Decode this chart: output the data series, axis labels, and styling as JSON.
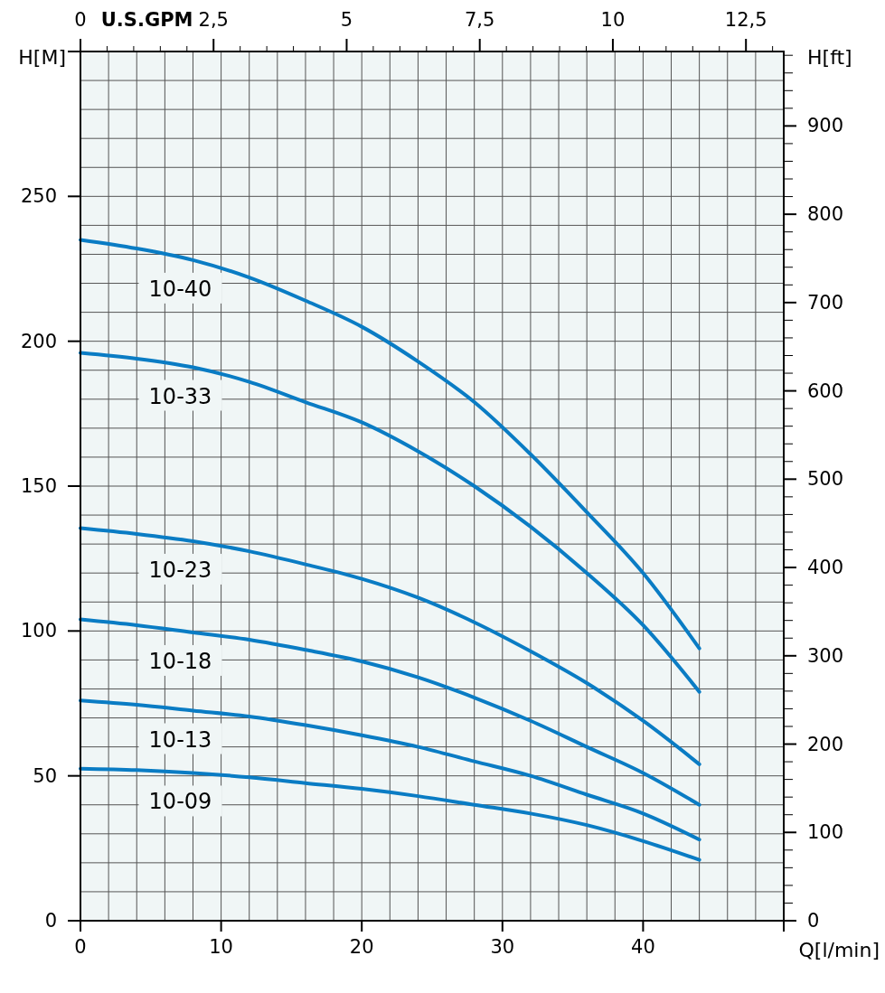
{
  "chart_data": {
    "type": "line",
    "xlabel": "Q[l/min]",
    "ylabel": "H[M]",
    "y2label": "H[ft]",
    "x2label": "U.S.GPM",
    "x": [
      0,
      4,
      8,
      12,
      16,
      20,
      24,
      28,
      32,
      36,
      40,
      44
    ],
    "xlim": [
      0,
      50
    ],
    "xticks": [
      0,
      {
        "value": 2,
        "label": null
      },
      {
        "value": 4,
        "label": null
      },
      {
        "value": 6,
        "label": null
      },
      {
        "value": 8,
        "label": null
      },
      10,
      {
        "value": 12,
        "label": null
      },
      {
        "value": 14,
        "label": null
      },
      {
        "value": 16,
        "label": null
      },
      {
        "value": 18,
        "label": null
      },
      20,
      {
        "value": 22,
        "label": null
      },
      {
        "value": 24,
        "label": null
      },
      {
        "value": 26,
        "label": null
      },
      {
        "value": 28,
        "label": null
      },
      30,
      {
        "value": 32,
        "label": null
      },
      {
        "value": 34,
        "label": null
      },
      {
        "value": 36,
        "label": null
      },
      {
        "value": 38,
        "label": null
      },
      40,
      {
        "value": 42,
        "label": null
      },
      {
        "value": 44,
        "label": null
      },
      {
        "value": 46,
        "label": null
      },
      {
        "value": 48,
        "label": null
      },
      {
        "value": 50,
        "label": null
      }
    ],
    "ylim": [
      0,
      300
    ],
    "yticks": [
      0,
      {
        "value": 10,
        "label": null
      },
      {
        "value": 20,
        "label": null
      },
      {
        "value": 30,
        "label": null
      },
      {
        "value": 40,
        "label": null
      },
      50,
      {
        "value": 60,
        "label": null
      },
      {
        "value": 70,
        "label": null
      },
      {
        "value": 80,
        "label": null
      },
      {
        "value": 90,
        "label": null
      },
      100,
      {
        "value": 110,
        "label": null
      },
      {
        "value": 120,
        "label": null
      },
      {
        "value": 130,
        "label": null
      },
      {
        "value": 140,
        "label": null
      },
      150,
      {
        "value": 160,
        "label": null
      },
      {
        "value": 170,
        "label": null
      },
      {
        "value": 180,
        "label": null
      },
      {
        "value": 190,
        "label": null
      },
      200,
      {
        "value": 210,
        "label": null
      },
      {
        "value": 220,
        "label": null
      },
      {
        "value": 230,
        "label": null
      },
      {
        "value": 240,
        "label": null
      },
      250,
      {
        "value": 260,
        "label": null
      },
      {
        "value": 270,
        "label": null
      },
      {
        "value": 280,
        "label": null
      },
      {
        "value": 290,
        "label": null
      },
      {
        "value": 300,
        "label": null
      }
    ],
    "x2lim": [
      0,
      13.21
    ],
    "x2ticks": [
      0,
      {
        "value": 0.5,
        "label": null
      },
      {
        "value": 1,
        "label": null
      },
      {
        "value": 1.5,
        "label": null
      },
      {
        "value": 2,
        "label": null
      },
      {
        "value": 2.5,
        "label": "2,5"
      },
      {
        "value": 3,
        "label": null
      },
      {
        "value": 3.5,
        "label": null
      },
      {
        "value": 4,
        "label": null
      },
      {
        "value": 4.5,
        "label": null
      },
      5,
      {
        "value": 5.5,
        "label": null
      },
      {
        "value": 6,
        "label": null
      },
      {
        "value": 6.5,
        "label": null
      },
      {
        "value": 7,
        "label": null
      },
      {
        "value": 7.5,
        "label": "7,5"
      },
      {
        "value": 8,
        "label": null
      },
      {
        "value": 8.5,
        "label": null
      },
      {
        "value": 9,
        "label": null
      },
      {
        "value": 9.5,
        "label": null
      },
      10,
      {
        "value": 10.5,
        "label": null
      },
      {
        "value": 11,
        "label": null
      },
      {
        "value": 11.5,
        "label": null
      },
      {
        "value": 12,
        "label": null
      },
      {
        "value": 12.5,
        "label": "12,5"
      },
      {
        "value": 13,
        "label": null
      }
    ],
    "y2lim": [
      0,
      984.3
    ],
    "y2ticks": [
      0,
      {
        "value": 20,
        "label": null
      },
      {
        "value": 40,
        "label": null
      },
      {
        "value": 60,
        "label": null
      },
      {
        "value": 80,
        "label": null
      },
      100,
      {
        "value": 120,
        "label": null
      },
      {
        "value": 140,
        "label": null
      },
      {
        "value": 160,
        "label": null
      },
      {
        "value": 180,
        "label": null
      },
      200,
      {
        "value": 220,
        "label": null
      },
      {
        "value": 240,
        "label": null
      },
      {
        "value": 260,
        "label": null
      },
      {
        "value": 280,
        "label": null
      },
      300,
      {
        "value": 320,
        "label": null
      },
      {
        "value": 340,
        "label": null
      },
      {
        "value": 360,
        "label": null
      },
      {
        "value": 380,
        "label": null
      },
      400,
      {
        "value": 420,
        "label": null
      },
      {
        "value": 440,
        "label": null
      },
      {
        "value": 460,
        "label": null
      },
      {
        "value": 480,
        "label": null
      },
      500,
      {
        "value": 520,
        "label": null
      },
      {
        "value": 540,
        "label": null
      },
      {
        "value": 560,
        "label": null
      },
      {
        "value": 580,
        "label": null
      },
      600,
      {
        "value": 620,
        "label": null
      },
      {
        "value": 640,
        "label": null
      },
      {
        "value": 660,
        "label": null
      },
      {
        "value": 680,
        "label": null
      },
      700,
      {
        "value": 720,
        "label": null
      },
      {
        "value": 740,
        "label": null
      },
      {
        "value": 760,
        "label": null
      },
      {
        "value": 780,
        "label": null
      },
      800,
      {
        "value": 820,
        "label": null
      },
      {
        "value": 840,
        "label": null
      },
      {
        "value": 860,
        "label": null
      },
      {
        "value": 880,
        "label": null
      },
      900,
      {
        "value": 920,
        "label": null
      },
      {
        "value": 940,
        "label": null
      },
      {
        "value": 960,
        "label": null
      },
      {
        "value": 980,
        "label": null
      }
    ],
    "grid": true,
    "marker": "none",
    "line_style": "solid",
    "series": [
      {
        "name": "10-40",
        "color": "#0a7cc4",
        "values": [
          235,
          232,
          228,
          222,
          214,
          205,
          193,
          179,
          161,
          141,
          120,
          94
        ]
      },
      {
        "name": "10-33",
        "color": "#0a7cc4",
        "values": [
          196,
          194,
          191,
          186,
          179,
          172,
          162,
          150,
          136,
          120,
          102,
          79
        ]
      },
      {
        "name": "10-23",
        "color": "#0a7cc4",
        "values": [
          135.5,
          133.5,
          131,
          127.5,
          123,
          118,
          111.5,
          103,
          93,
          82,
          69,
          54
        ]
      },
      {
        "name": "10-18",
        "color": "#0a7cc4",
        "values": [
          104,
          102,
          99.5,
          97,
          93.5,
          89.5,
          84,
          77,
          69,
          60,
          51,
          40
        ]
      },
      {
        "name": "10-13",
        "color": "#0a7cc4",
        "values": [
          76,
          74.5,
          72.5,
          70.5,
          67.5,
          64,
          60,
          55,
          50,
          43.5,
          37,
          28
        ]
      },
      {
        "name": "10-09",
        "color": "#0a7cc4",
        "values": [
          52.5,
          52,
          51,
          49.5,
          47.5,
          45.5,
          43,
          40,
          37,
          33,
          27.5,
          21
        ]
      }
    ]
  }
}
